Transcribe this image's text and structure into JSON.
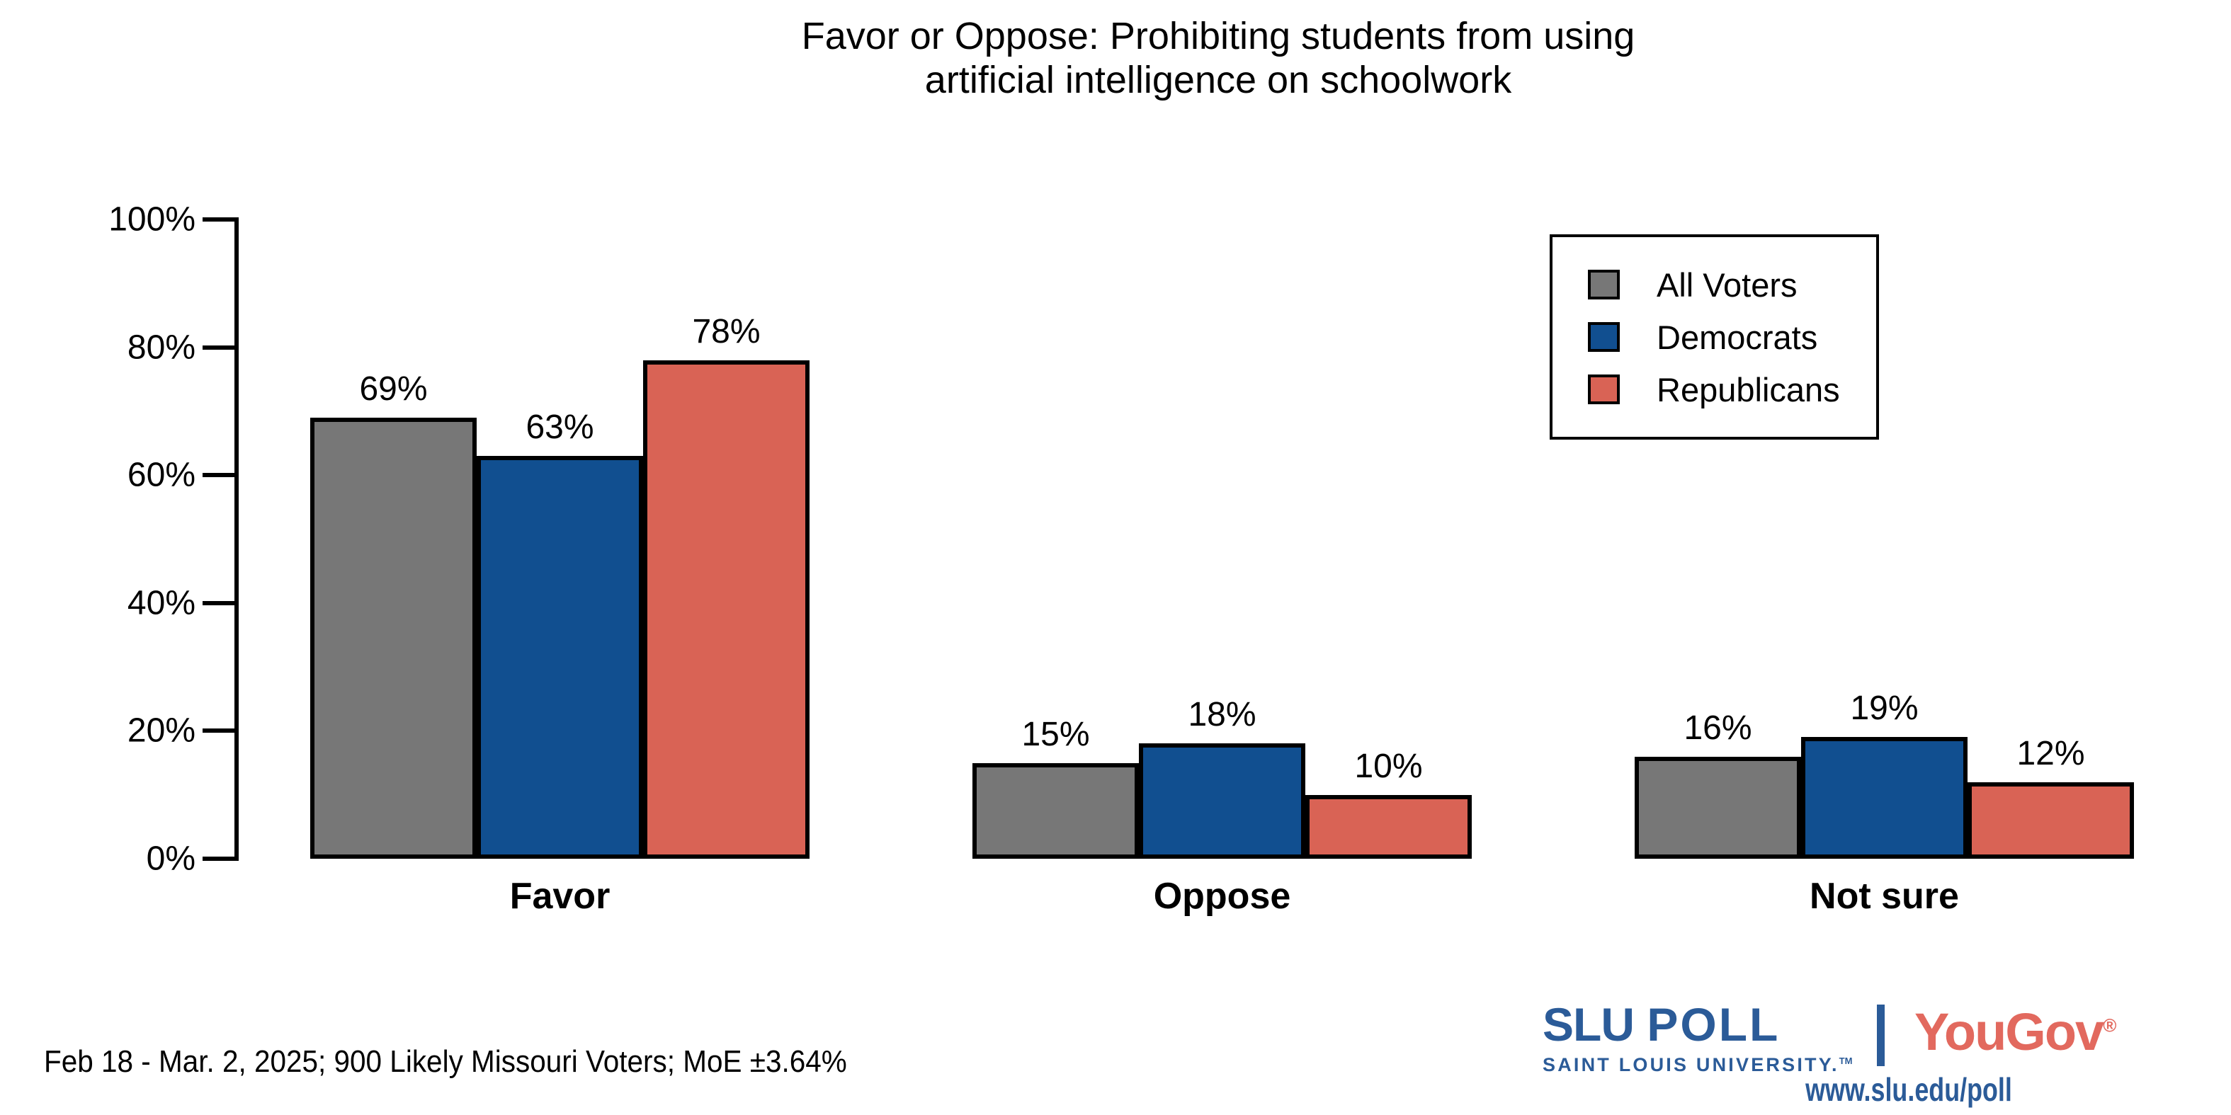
{
  "title": {
    "line1": "Favor or Oppose: Prohibiting students from using",
    "line2": "artificial intelligence on schoolwork"
  },
  "chart_data": {
    "type": "bar",
    "categories": [
      "Favor",
      "Oppose",
      "Not sure"
    ],
    "series": [
      {
        "name": "All Voters",
        "color": "#777777",
        "values": [
          69,
          15,
          16
        ]
      },
      {
        "name": "Democrats",
        "color": "#114F90",
        "values": [
          63,
          18,
          19
        ]
      },
      {
        "name": "Republicans",
        "color": "#D96355",
        "values": [
          78,
          10,
          12
        ]
      }
    ],
    "value_suffix": "%",
    "ylim": [
      0,
      100
    ],
    "yticks": [
      0,
      20,
      40,
      60,
      80,
      100
    ],
    "ytick_suffix": "%",
    "grid": false,
    "legend_position": "upper right",
    "bar_outline_color": "#000000"
  },
  "legend": {
    "items": [
      {
        "label": "All Voters",
        "color": "#777777"
      },
      {
        "label": "Democrats",
        "color": "#114F90"
      },
      {
        "label": "Republicans",
        "color": "#D96355"
      }
    ]
  },
  "footer": {
    "note": "Feb 18 - Mar. 2, 2025; 900 Likely Missouri Voters; MoE ±3.64%"
  },
  "branding": {
    "slu_wordmark_bold": "SLU",
    "slu_wordmark_rest": "POLL",
    "slu_subtitle": "SAINT LOUIS UNIVERSITY.",
    "slu_trademark": "TM",
    "yougov_wordmark": "YouGov",
    "yougov_registered": "®",
    "url": "www.slu.edu/poll",
    "slu_blue": "#2B5B98",
    "yougov_red": "#E2695E"
  }
}
